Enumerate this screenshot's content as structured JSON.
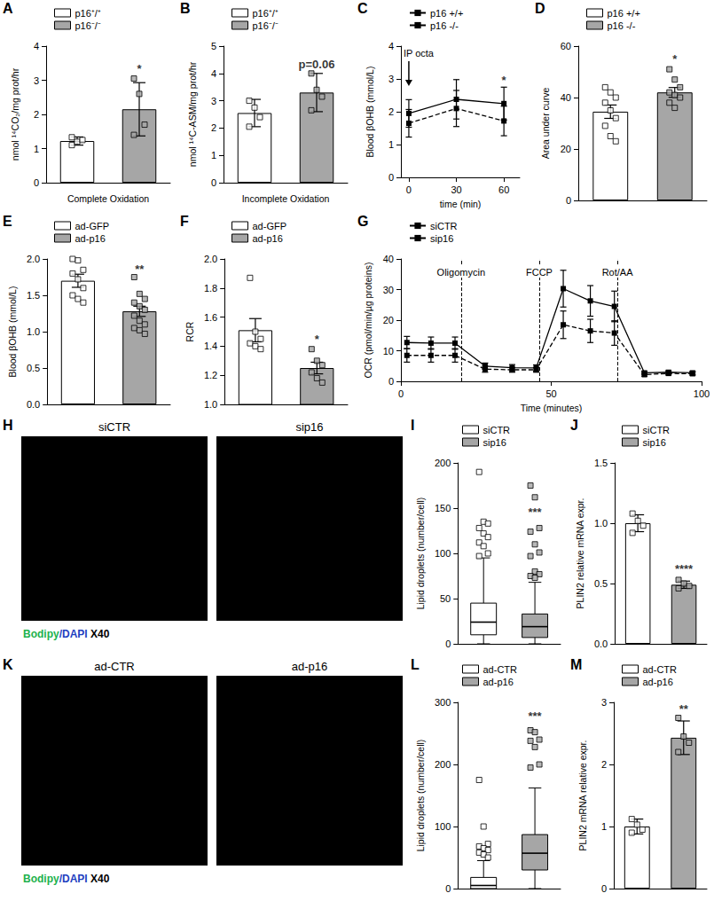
{
  "chart_data": [
    {
      "panel": "A",
      "type": "bar",
      "y_label": "nmol ¹⁴CO₂/mg prot/hr",
      "x_label": "Complete Oxidation",
      "ylim": [
        0,
        4
      ],
      "yticks": [
        0,
        1,
        2,
        3,
        4
      ],
      "grid": false,
      "legend": "top-left",
      "tick_labels": "y",
      "series": [
        {
          "name": "p16⁺/⁺",
          "color": "#ffffff",
          "marker": "rect",
          "mean": 1.22,
          "error": 0.12,
          "points": [
            1.1,
            1.2,
            1.25,
            1.33
          ]
        },
        {
          "name": "p16⁻/⁻",
          "color": "#a6a6a6",
          "marker": "rect",
          "mean": 2.15,
          "error": 0.78,
          "points": [
            3.05,
            2.6,
            1.7,
            1.4
          ]
        }
      ],
      "annotations": [
        {
          "text": "*",
          "x": "p16⁻/⁻",
          "y": 3.35
        }
      ]
    },
    {
      "panel": "B",
      "type": "bar",
      "y_label": "nmol ¹⁴C-ASM/mg prot/hr",
      "x_label": "Incomplete Oxidation",
      "ylim": [
        0,
        5
      ],
      "yticks": [
        0,
        1,
        2,
        3,
        4,
        5
      ],
      "grid": false,
      "legend": "top-left",
      "tick_labels": "y",
      "series": [
        {
          "name": "p16⁺/⁺",
          "color": "#ffffff",
          "marker": "rect",
          "mean": 2.55,
          "error": 0.5,
          "points": [
            3.0,
            2.75,
            2.4,
            2.05
          ]
        },
        {
          "name": "p16⁻/⁻",
          "color": "#a6a6a6",
          "marker": "rect",
          "mean": 3.3,
          "error": 0.7,
          "points": [
            4.0,
            3.4,
            3.15,
            2.65
          ]
        }
      ],
      "annotations": [
        {
          "text": "p=0.06",
          "x": "p16⁻/⁻",
          "y": 4.35
        }
      ]
    },
    {
      "panel": "C",
      "type": "line",
      "y_label": "Blood βOHB (mmol/L)",
      "x_label": "time (min)",
      "x": [
        0,
        30,
        60
      ],
      "xlim": [
        -5,
        70
      ],
      "xticks": [
        0,
        30,
        60
      ],
      "ylim": [
        0,
        4
      ],
      "yticks": [
        0,
        1,
        2,
        3,
        4
      ],
      "grid": false,
      "legend": "top-left",
      "series": [
        {
          "name": "p16 +/+",
          "color": "#000000",
          "line_style": "dashed",
          "marker": "rect",
          "values": [
            1.65,
            2.1,
            1.72
          ],
          "errors": [
            0.42,
            0.55,
            0.45
          ]
        },
        {
          "name": "p16 -/-",
          "color": "#000000",
          "line_style": "solid",
          "marker": "rect",
          "values": [
            1.95,
            2.38,
            2.25
          ],
          "errors": [
            0.42,
            0.6,
            0.5
          ]
        }
      ],
      "events": [
        {
          "x": 0,
          "label": "IP octa",
          "line_style": "arrow"
        }
      ],
      "annotations": [
        {
          "text": "*",
          "x": 60,
          "y": 2.95
        }
      ]
    },
    {
      "panel": "D",
      "type": "bar",
      "y_label": "Area under curve",
      "ylim": [
        0,
        60
      ],
      "yticks": [
        0,
        20,
        40,
        60
      ],
      "grid": false,
      "legend": "top-left",
      "tick_labels": "y",
      "series": [
        {
          "name": "p16 +/+",
          "color": "#ffffff",
          "marker": "rect",
          "mean": 34.5,
          "error": 2.6,
          "points": [
            44,
            42,
            40,
            38,
            35,
            32,
            29,
            25,
            23
          ]
        },
        {
          "name": "p16 -/-",
          "color": "#a6a6a6",
          "marker": "rect",
          "mean": 42,
          "error": 1.9,
          "points": [
            51,
            47,
            44,
            42,
            41,
            40,
            38,
            36
          ]
        }
      ],
      "annotations": [
        {
          "text": "*",
          "x": "p16 -/-",
          "y": 55
        }
      ]
    },
    {
      "panel": "E",
      "type": "bar",
      "y_label": "Blood βOHB (mmol/L)",
      "ylim": [
        0,
        2
      ],
      "yticks": [
        {
          "value": 0,
          "label": "0.0"
        },
        {
          "value": 0.5,
          "label": "0.5"
        },
        {
          "value": 1,
          "label": "1.0"
        },
        {
          "value": 1.5,
          "label": "1.5"
        },
        {
          "value": 2,
          "label": "2.0"
        }
      ],
      "grid": false,
      "legend": "top-left",
      "tick_labels": "y",
      "series": [
        {
          "name": "ad-GFP",
          "color": "#ffffff",
          "marker": "rect",
          "mean": 1.7,
          "error": 0.09,
          "points": [
            2.0,
            1.98,
            1.85,
            1.8,
            1.72,
            1.6,
            1.5,
            1.45,
            1.4
          ]
        },
        {
          "name": "ad-p16",
          "color": "#a6a6a6",
          "marker": "rect",
          "mean": 1.28,
          "error": 0.07,
          "points": [
            1.75,
            1.52,
            1.45,
            1.4,
            1.35,
            1.3,
            1.22,
            1.15,
            1.1,
            1.05,
            1.02,
            0.97
          ]
        }
      ],
      "annotations": [
        {
          "text": "**",
          "x": "ad-p16",
          "y": 1.86
        }
      ]
    },
    {
      "panel": "F",
      "type": "bar",
      "y_label": "RCR",
      "ylim": [
        1,
        2
      ],
      "yticks": [
        {
          "value": 1,
          "label": "1.0"
        },
        {
          "value": 1.2,
          "label": "1.2"
        },
        {
          "value": 1.4,
          "label": "1.4"
        },
        {
          "value": 1.6,
          "label": "1.6"
        },
        {
          "value": 1.8,
          "label": "1.8"
        },
        {
          "value": 2,
          "label": "2.0"
        }
      ],
      "grid": false,
      "legend": "top-left",
      "tick_labels": "y",
      "series": [
        {
          "name": "ad-GFP",
          "color": "#ffffff",
          "marker": "rect",
          "mean": 1.51,
          "error": 0.08,
          "points": [
            1.87,
            1.5,
            1.45,
            1.42,
            1.4,
            1.38
          ]
        },
        {
          "name": "ad-p16",
          "color": "#a6a6a6",
          "marker": "rect",
          "mean": 1.25,
          "error": 0.04,
          "points": [
            1.38,
            1.3,
            1.27,
            1.22,
            1.18,
            1.15
          ]
        }
      ],
      "annotations": [
        {
          "text": "*",
          "x": "ad-p16",
          "y": 1.45
        }
      ]
    },
    {
      "panel": "G",
      "type": "line",
      "y_label": "OCR (pmol/min/µg proteins)",
      "x_label": "Time (minutes)",
      "x": [
        2,
        10,
        18,
        28,
        37,
        45,
        54,
        63,
        71,
        81,
        89,
        97
      ],
      "xlim": [
        0,
        100
      ],
      "xticks": [
        0,
        50,
        100
      ],
      "ylim": [
        0,
        40
      ],
      "yticks": [
        0,
        10,
        20,
        30,
        40
      ],
      "grid": false,
      "legend": "top-left",
      "series": [
        {
          "name": "siCTR",
          "color": "#000000",
          "line_style": "dashed",
          "marker": "rect",
          "values": [
            8.5,
            8.5,
            8.5,
            4.0,
            3.8,
            3.8,
            18.5,
            16.5,
            15.8,
            2.2,
            2.6,
            2.5
          ],
          "errors": [
            2.2,
            2.2,
            2.2,
            1,
            0.8,
            0.8,
            4.5,
            3.8,
            4,
            0.5,
            0.5,
            0.5
          ]
        },
        {
          "name": "sip16",
          "color": "#000000",
          "line_style": "solid",
          "marker": "rect",
          "values": [
            12.7,
            12.5,
            12.5,
            5.0,
            4.5,
            4.4,
            30.3,
            26.3,
            24.5,
            2.8,
            3.0,
            2.8
          ],
          "errors": [
            2,
            2,
            2,
            1,
            1,
            1,
            6,
            5,
            5,
            0.5,
            0.5,
            0.5
          ]
        }
      ],
      "events": [
        {
          "x": 20,
          "label": "Oligomycin",
          "line_style": "dashed"
        },
        {
          "x": 46,
          "label": "FCCP",
          "line_style": "dashed"
        },
        {
          "x": 72,
          "label": "Rot/AA",
          "line_style": "dashed"
        }
      ],
      "annotations": []
    },
    {
      "panel": "H",
      "type": "image",
      "labels": [
        "siCTR",
        "sip16"
      ],
      "caption": [
        {
          "text": "Bodipy",
          "color": "#22b14c"
        },
        {
          "text": "/DAPI",
          "color": "#1f3fbf"
        },
        {
          "text": " X40",
          "color": "#000000"
        }
      ]
    },
    {
      "panel": "I",
      "type": "box",
      "y_label": "Lipid droplets (number/cell)",
      "ylim": [
        0,
        200
      ],
      "yticks": [
        0,
        50,
        100,
        150,
        200
      ],
      "grid": false,
      "legend": "top-left",
      "tick_labels": "y",
      "series": [
        {
          "name": "siCTR",
          "color": "#ffffff",
          "marker": "rect",
          "box": [
            0,
            10,
            24,
            45,
            95
          ],
          "outliers": [
            190,
            135,
            133,
            128,
            122,
            118,
            112,
            108,
            100,
            97
          ]
        },
        {
          "name": "sip16",
          "color": "#a6a6a6",
          "marker": "rect",
          "box": [
            0,
            7,
            19,
            33,
            68
          ],
          "outliers": [
            175,
            162,
            128,
            124,
            110,
            101,
            97,
            80,
            77,
            75,
            73
          ]
        }
      ],
      "annotations": [
        {
          "text": "***",
          "x": "sip16",
          "y": 146
        }
      ]
    },
    {
      "panel": "J",
      "type": "bar",
      "y_label": "PLIN2 relative mRNA expr.",
      "ylim": [
        0,
        1.5
      ],
      "yticks": [
        {
          "value": 0,
          "label": "0.0"
        },
        {
          "value": 0.5,
          "label": "0.5"
        },
        {
          "value": 1,
          "label": "1.0"
        },
        {
          "value": 1.5,
          "label": "1.5"
        }
      ],
      "grid": false,
      "legend": "top-left",
      "tick_labels": "y",
      "series": [
        {
          "name": "siCTR",
          "color": "#ffffff",
          "marker": "rect",
          "mean": 1.0,
          "error": 0.07,
          "points": [
            1.08,
            1.02,
            0.98,
            0.92
          ]
        },
        {
          "name": "sip16",
          "color": "#a6a6a6",
          "marker": "rect",
          "mean": 0.49,
          "error": 0.03,
          "points": [
            0.53,
            0.5,
            0.48,
            0.46
          ]
        }
      ],
      "annotations": [
        {
          "text": "****",
          "x": "sip16",
          "y": 0.62
        }
      ]
    },
    {
      "panel": "K",
      "type": "image",
      "labels": [
        "ad-CTR",
        "ad-p16"
      ],
      "caption": [
        {
          "text": "Bodipy",
          "color": "#22b14c"
        },
        {
          "text": "/DAPI",
          "color": "#1f3fbf"
        },
        {
          "text": " X40",
          "color": "#000000"
        }
      ]
    },
    {
      "panel": "L",
      "type": "box",
      "y_label": "Lipid droplets (number/cell)",
      "ylim": [
        0,
        300
      ],
      "yticks": [
        0,
        100,
        200,
        300
      ],
      "grid": false,
      "legend": "top-left",
      "tick_labels": "y",
      "series": [
        {
          "name": "ad-CTR",
          "color": "#ffffff",
          "marker": "rect",
          "box": [
            0,
            0,
            5,
            18,
            45
          ],
          "outliers": [
            175,
            100,
            72,
            68,
            65,
            62,
            58,
            55,
            50
          ]
        },
        {
          "name": "ad-p16",
          "color": "#a6a6a6",
          "marker": "rect",
          "box": [
            0,
            30,
            57,
            87,
            162
          ],
          "outliers": [
            255,
            252,
            240,
            238,
            228,
            200,
            195
          ]
        }
      ],
      "annotations": [
        {
          "text": "***",
          "x": "ad-p16",
          "y": 278
        }
      ]
    },
    {
      "panel": "M",
      "type": "bar",
      "y_label": "PLIN2 mRNA relative expr.",
      "ylim": [
        0,
        3
      ],
      "yticks": [
        0,
        1,
        2,
        3
      ],
      "grid": false,
      "legend": "top-left",
      "tick_labels": "y",
      "series": [
        {
          "name": "ad-CTR",
          "color": "#ffffff",
          "marker": "rect",
          "mean": 1.0,
          "error": 0.12,
          "points": [
            1.12,
            1.03,
            0.95,
            0.9
          ]
        },
        {
          "name": "ad-p16",
          "color": "#a6a6a6",
          "marker": "rect",
          "mean": 2.43,
          "error": 0.27,
          "points": [
            2.75,
            2.45,
            2.35,
            2.2
          ]
        }
      ],
      "annotations": [
        {
          "text": "**",
          "x": "ad-p16",
          "y": 2.9
        }
      ]
    }
  ]
}
